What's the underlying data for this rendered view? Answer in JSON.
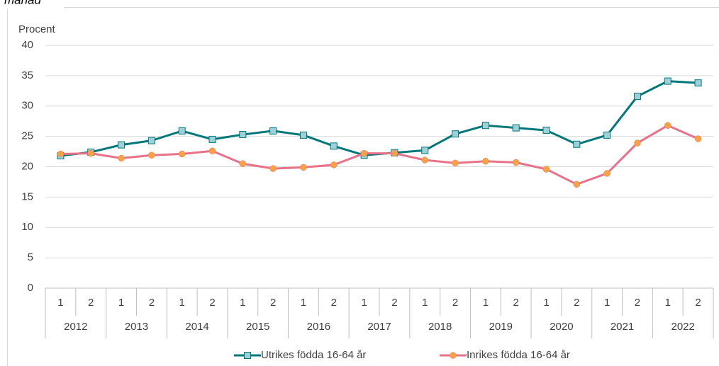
{
  "chart_data": {
    "type": "line",
    "title": "månad",
    "y_axis_label": "Procent",
    "categories": [
      "1",
      "2",
      "1",
      "2",
      "1",
      "2",
      "1",
      "2",
      "1",
      "2",
      "1",
      "2",
      "1",
      "2",
      "1",
      "2",
      "1",
      "2",
      "1",
      "2",
      "1",
      "2"
    ],
    "groups": [
      "2012",
      "2013",
      "2014",
      "2015",
      "2016",
      "2017",
      "2018",
      "2019",
      "2020",
      "2021",
      "2022"
    ],
    "series": [
      {
        "name": "Utrikes födda 16-64 år",
        "color": "#00787a",
        "marker_color": "#9fd0d8",
        "marker": "square",
        "values": [
          21.8,
          22.4,
          23.6,
          24.3,
          25.9,
          24.5,
          25.3,
          25.9,
          25.2,
          23.4,
          21.9,
          22.3,
          22.7,
          25.4,
          26.8,
          26.4,
          26.0,
          23.7,
          25.2,
          31.6,
          34.1,
          33.8
        ]
      },
      {
        "name": "Inrikes födda 16-64 år",
        "color": "#e8728a",
        "marker_color": "#f7a440",
        "marker": "circle",
        "values": [
          22.1,
          22.2,
          21.4,
          21.9,
          22.1,
          22.6,
          20.5,
          19.7,
          19.9,
          20.3,
          22.2,
          22.2,
          21.1,
          20.6,
          20.9,
          20.7,
          19.6,
          17.1,
          18.9,
          23.9,
          26.8,
          24.6
        ]
      }
    ],
    "ylim": [
      0,
      40
    ],
    "yticks": [
      0,
      5,
      10,
      15,
      20,
      25,
      30,
      35,
      40
    ],
    "grid": true,
    "legend": "bottom"
  }
}
